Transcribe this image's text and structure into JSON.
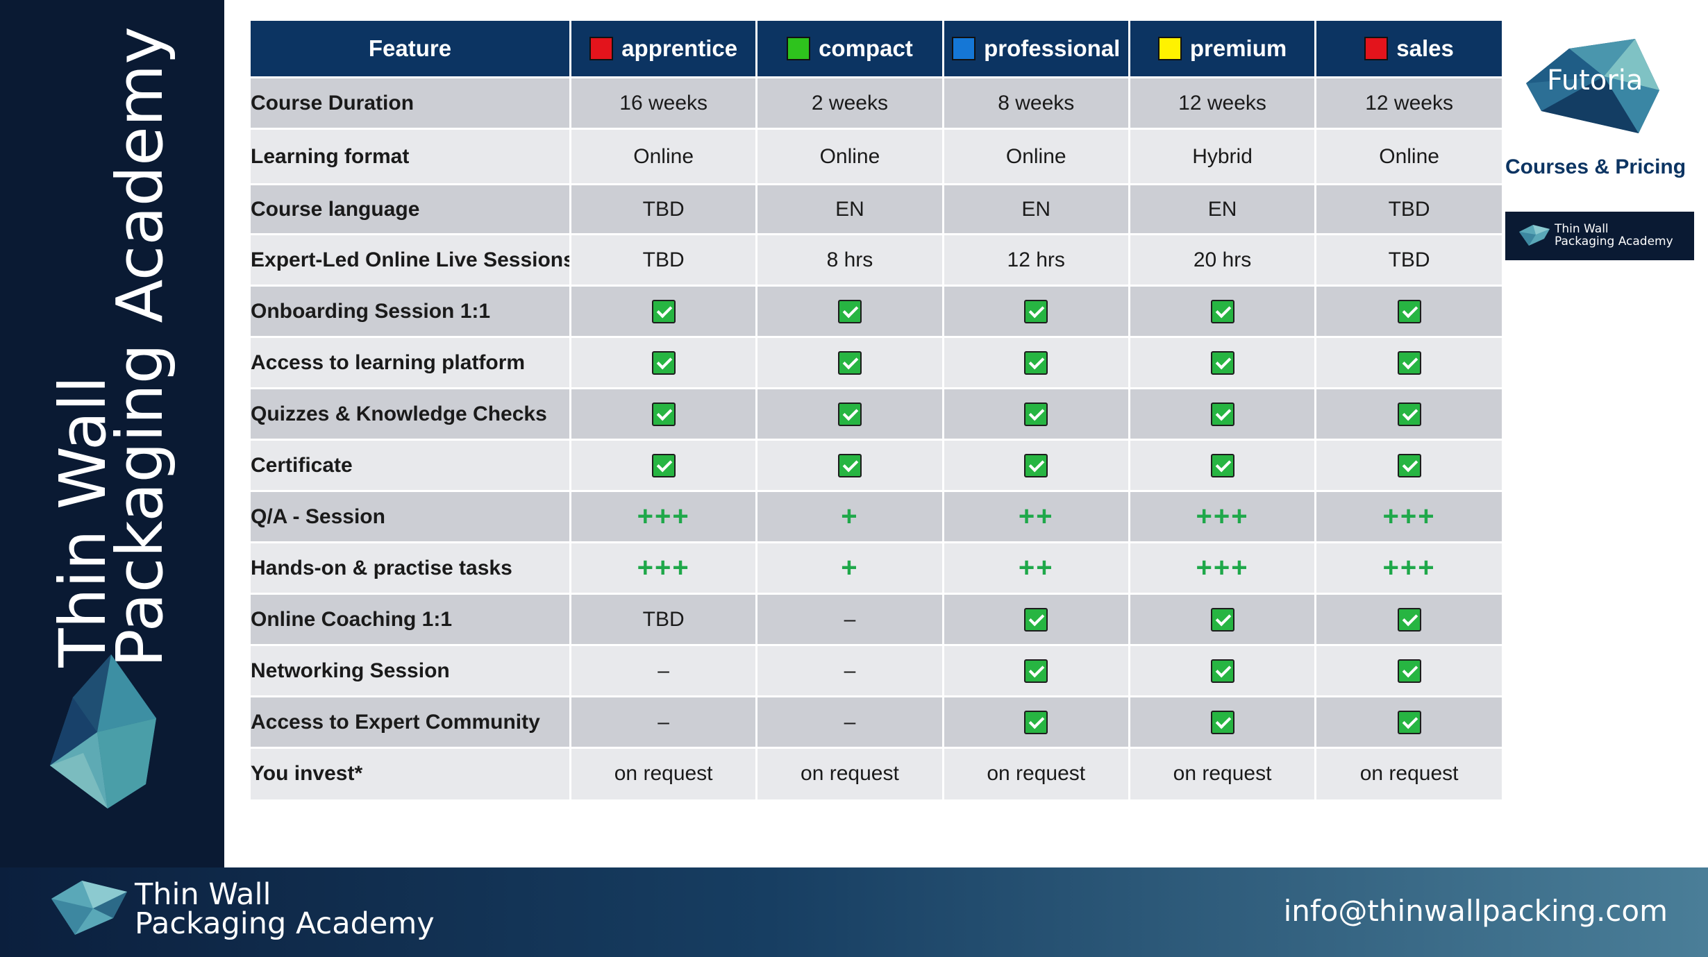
{
  "brand": {
    "line1": "Thin Wall",
    "line2": "Packaging Academy"
  },
  "footer": {
    "email": "info@thinwallpacking.com"
  },
  "top_right": {
    "logo_text": "Futoria",
    "subtitle": "Courses & Pricing",
    "badge_line1": "Thin Wall",
    "badge_line2": "Packaging Academy"
  },
  "colors": {
    "apprentice": "#e3141c",
    "compact": "#2ec31d",
    "professional": "#1577d6",
    "premium": "#fff200",
    "sales": "#e3141c"
  },
  "table": {
    "feature_header": "Feature",
    "plans": [
      "apprentice",
      "compact",
      "professional",
      "premium",
      "sales"
    ],
    "rows": [
      {
        "feature": "Course Duration",
        "cells": [
          "16 weeks",
          "2 weeks",
          "8 weeks",
          "12 weeks",
          "12 weeks"
        ]
      },
      {
        "feature": "Learning format",
        "cells": [
          "Online",
          "Online",
          "Online",
          "Hybrid",
          "Online"
        ]
      },
      {
        "feature": "Course language",
        "cells": [
          "TBD",
          "EN",
          "EN",
          "EN",
          "TBD"
        ]
      },
      {
        "feature": "Expert-Led Online Live Sessions",
        "cells": [
          "TBD",
          "8 hrs",
          "12 hrs",
          "20 hrs",
          "TBD"
        ]
      },
      {
        "feature": "Onboarding Session 1:1",
        "cells": [
          "check",
          "check",
          "check",
          "check",
          "check"
        ]
      },
      {
        "feature": "Access to learning platform",
        "cells": [
          "check",
          "check",
          "check",
          "check",
          "check"
        ]
      },
      {
        "feature": "Quizzes & Knowledge Checks",
        "cells": [
          "check",
          "check",
          "check",
          "check",
          "check"
        ]
      },
      {
        "feature": "Certificate",
        "cells": [
          "check",
          "check",
          "check",
          "check",
          "check"
        ]
      },
      {
        "feature": "Q/A - Session",
        "cells": [
          "+++",
          "+",
          "++",
          "+++",
          "+++"
        ]
      },
      {
        "feature": "Hands-on & practise tasks",
        "cells": [
          "+++",
          "+",
          "++",
          "+++",
          "+++"
        ]
      },
      {
        "feature": "Online Coaching 1:1",
        "cells": [
          "TBD",
          "–",
          "check",
          "check",
          "check"
        ]
      },
      {
        "feature": "Networking  Session",
        "cells": [
          "–",
          "–",
          "check",
          "check",
          "check"
        ]
      },
      {
        "feature": "Access to Expert Community",
        "cells": [
          "–",
          "–",
          "check",
          "check",
          "check"
        ]
      },
      {
        "feature": "You invest*",
        "cells": [
          "on request",
          "on request",
          "on request",
          "on request",
          "on request"
        ]
      }
    ]
  }
}
